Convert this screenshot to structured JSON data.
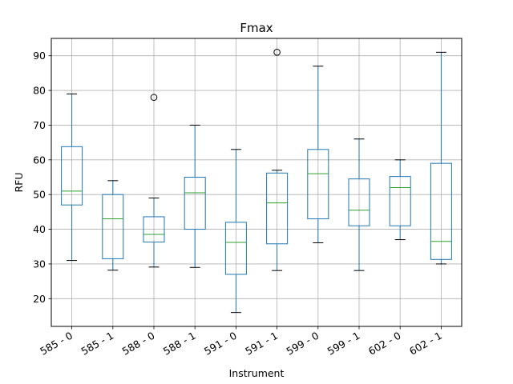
{
  "chart_data": {
    "type": "boxplot",
    "title": "Fmax",
    "xlabel": "Instrument",
    "ylabel": "RFU",
    "ylim": [
      12,
      95
    ],
    "yticks": [
      20,
      30,
      40,
      50,
      60,
      70,
      80,
      90
    ],
    "grid": true,
    "colors": {
      "box": "#1f77b4",
      "median": "#2ca02c",
      "whisker_cap": "#000000",
      "grid": "#b0b0b0"
    },
    "categories": [
      "585 - 0",
      "585 - 1",
      "588 - 0",
      "588 - 1",
      "591 - 0",
      "591 - 1",
      "599 - 0",
      "599 - 1",
      "602 - 0",
      "602 - 1"
    ],
    "boxes": [
      {
        "whislo": 31,
        "q1": 47,
        "med": 51,
        "q3": 63.8,
        "whishi": 79,
        "fliers": []
      },
      {
        "whislo": 28.2,
        "q1": 31.5,
        "med": 43,
        "q3": 50,
        "whishi": 54,
        "fliers": []
      },
      {
        "whislo": 29.1,
        "q1": 36.3,
        "med": 38.5,
        "q3": 43.6,
        "whishi": 49,
        "fliers": [
          78
        ]
      },
      {
        "whislo": 29,
        "q1": 40,
        "med": 50.5,
        "q3": 55,
        "whishi": 70,
        "fliers": []
      },
      {
        "whislo": 16,
        "q1": 27,
        "med": 36.2,
        "q3": 42,
        "whishi": 63,
        "fliers": []
      },
      {
        "whislo": 28.1,
        "q1": 35.8,
        "med": 47.6,
        "q3": 56.2,
        "whishi": 57,
        "fliers": [
          91
        ]
      },
      {
        "whislo": 36.1,
        "q1": 43,
        "med": 56,
        "q3": 63,
        "whishi": 87,
        "fliers": []
      },
      {
        "whislo": 28.1,
        "q1": 41,
        "med": 45.5,
        "q3": 54.5,
        "whishi": 66,
        "fliers": []
      },
      {
        "whislo": 37,
        "q1": 41,
        "med": 52,
        "q3": 55.2,
        "whishi": 60,
        "fliers": []
      },
      {
        "whislo": 30,
        "q1": 31.3,
        "med": 36.5,
        "q3": 59,
        "whishi": 91,
        "fliers": []
      }
    ]
  }
}
